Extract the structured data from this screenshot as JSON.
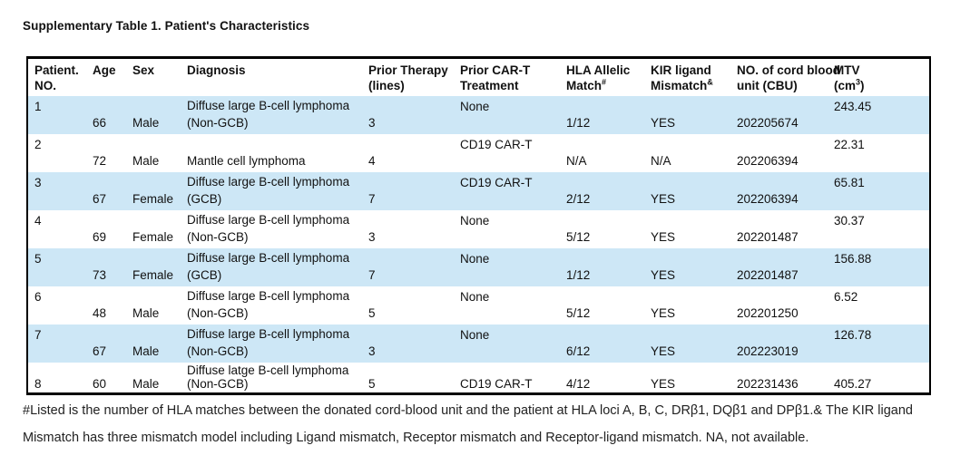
{
  "title": "Supplementary Table 1. Patient's Characteristics",
  "table": {
    "columns": [
      {
        "line1": "Patient.",
        "line2": "NO."
      },
      {
        "line1": "Age"
      },
      {
        "line1": "Sex"
      },
      {
        "line1": "Diagnosis"
      },
      {
        "line1": "Prior Therapy",
        "line2": "(lines)"
      },
      {
        "line1": "Prior CAR-T",
        "line2": "Treatment"
      },
      {
        "line1": "HLA Allelic",
        "line2": "Match",
        "sup": "#"
      },
      {
        "line1": "KIR ligand",
        "line2": "Mismatch",
        "sup": "&"
      },
      {
        "line1": "NO. of cord blood",
        "line2": "unit (CBU)"
      },
      {
        "line1": "MTV",
        "line2": "(cm",
        "sup": "3",
        "line2_post": ")"
      }
    ],
    "rows": [
      {
        "no": "1",
        "age": "66",
        "sex": "Male",
        "diagnosis": "Diffuse large B-cell lymphoma (Non-GCB)",
        "prior_therapy": "3",
        "prior_cart": "None",
        "hla_match": "1/12",
        "kir_mismatch": "YES",
        "cbu": "202205674",
        "mtv": "243.45"
      },
      {
        "no": "2",
        "age": "72",
        "sex": "Male",
        "diagnosis": "Mantle cell lymphoma",
        "prior_therapy": "4",
        "prior_cart": "CD19 CAR-T",
        "hla_match": "N/A",
        "kir_mismatch": "N/A",
        "cbu": "202206394",
        "mtv": "22.31"
      },
      {
        "no": "3",
        "age": "67",
        "sex": "Female",
        "diagnosis": "Diffuse large B-cell lymphoma (GCB)",
        "prior_therapy": "7",
        "prior_cart": "CD19 CAR-T",
        "hla_match": "2/12",
        "kir_mismatch": "YES",
        "cbu": "202206394",
        "mtv": "65.81"
      },
      {
        "no": "4",
        "age": "69",
        "sex": "Female",
        "diagnosis": "Diffuse large B-cell lymphoma (Non-GCB)",
        "prior_therapy": "3",
        "prior_cart": "None",
        "hla_match": "5/12",
        "kir_mismatch": "YES",
        "cbu": "202201487",
        "mtv": "30.37"
      },
      {
        "no": "5",
        "age": "73",
        "sex": "Female",
        "diagnosis": "Diffuse large B-cell lymphoma (GCB)",
        "prior_therapy": "7",
        "prior_cart": "None",
        "hla_match": "1/12",
        "kir_mismatch": "YES",
        "cbu": "202201487",
        "mtv": "156.88"
      },
      {
        "no": "6",
        "age": "48",
        "sex": "Male",
        "diagnosis": "Diffuse large B-cell lymphoma (Non-GCB)",
        "prior_therapy": "5",
        "prior_cart": "None",
        "hla_match": "5/12",
        "kir_mismatch": "YES",
        "cbu": "202201250",
        "mtv": "6.52"
      },
      {
        "no": "7",
        "age": "67",
        "sex": "Male",
        "diagnosis": "Diffuse large B-cell lymphoma (Non-GCB)",
        "prior_therapy": "3",
        "prior_cart": "None",
        "hla_match": "6/12",
        "kir_mismatch": "YES",
        "cbu": "202223019",
        "mtv": "126.78"
      },
      {
        "no": "8",
        "age": "60",
        "sex": "Male",
        "diagnosis": "Diffuse latge B-cell lymphoma (Non-GCB)",
        "prior_therapy": "5",
        "prior_cart": "CD19 CAR-T",
        "hla_match": "4/12",
        "kir_mismatch": "YES",
        "cbu": "202231436",
        "mtv": "405.27"
      }
    ]
  },
  "footnote": {
    "lines": [
      "#Listed is the number of HLA matches between the donated cord-blood unit and the patient at HLA loci A, B, C, DRβ1, DQβ1 and DPβ1.& The KIR ligand",
      "Mismatch has three mismatch model including Ligand mismatch, Receptor mismatch and Receptor-ligand mismatch. NA, not available."
    ]
  },
  "colors": {
    "stripe": "#cde7f6",
    "border": "#000000",
    "text": "#111111"
  }
}
